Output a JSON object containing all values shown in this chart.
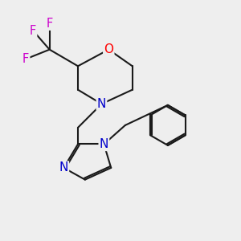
{
  "background_color": "#eeeeee",
  "bond_color": "#1a1a1a",
  "bond_width": 1.5,
  "atom_colors": {
    "O": "#ff0000",
    "N": "#0000cc",
    "F": "#cc00cc",
    "C": "#1a1a1a"
  },
  "font_size": 10.5,
  "figsize": [
    3.0,
    3.0
  ],
  "dpi": 100,
  "xlim": [
    0.0,
    10.0
  ],
  "ylim": [
    0.5,
    10.5
  ]
}
